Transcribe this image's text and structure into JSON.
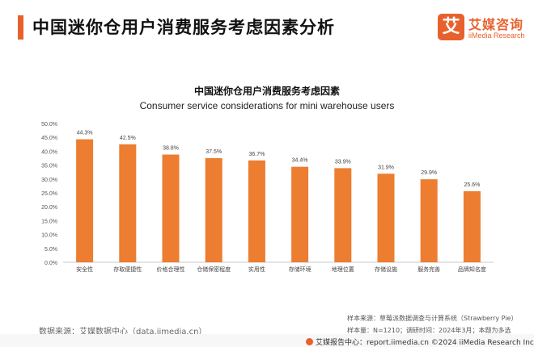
{
  "header": {
    "title": "中国迷你仓用户消费服务考虑因素分析"
  },
  "logo": {
    "mark": "艾",
    "name": "艾媒咨询",
    "sub": "iiMedia Research"
  },
  "chart_data": {
    "type": "bar",
    "title": "中国迷你仓用户消费服务考虑因素",
    "subtitle": "Consumer service considerations for mini warehouse users",
    "categories": [
      "安全性",
      "存取便捷性",
      "价格合理性",
      "仓储保密程度",
      "实用性",
      "存储环境",
      "地理位置",
      "存储设施",
      "服务完善",
      "品牌知名度"
    ],
    "values": [
      44.3,
      42.5,
      38.8,
      37.5,
      36.7,
      34.4,
      33.9,
      31.9,
      29.9,
      25.6
    ],
    "value_labels": [
      "44.3%",
      "42.5%",
      "38.8%",
      "37.5%",
      "36.7%",
      "34.4%",
      "33.9%",
      "31.9%",
      "29.9%",
      "25.6%"
    ],
    "y_ticks": [
      "0.0%",
      "5.0%",
      "10.0%",
      "15.0%",
      "20.0%",
      "25.0%",
      "30.0%",
      "35.0%",
      "40.0%",
      "45.0%",
      "50.0%"
    ],
    "ylim": [
      0,
      50
    ],
    "xlabel": "",
    "ylabel": "",
    "grid": false,
    "bar_color": "#ec7d31"
  },
  "source": "数据来源：艾媒数据中心（data.iimedia.cn）",
  "notes": {
    "line1": "样本来源：草莓派数据调查与计算系统（Strawberry Pie）",
    "line2": "样本量：N=1210；调研时间：2024年3月；本题为多选"
  },
  "footer": {
    "text": "艾媒报告中心：report.iimedia.cn    ©2024  iiMedia Research  Inc"
  }
}
